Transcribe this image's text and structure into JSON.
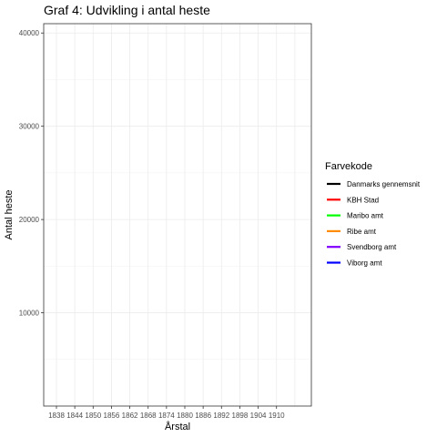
{
  "chart_data": {
    "type": "line",
    "title": "Graf 4: Udvikling i antal heste",
    "xlabel": "Årstal",
    "ylabel": "Antal heste",
    "x_ticks": [
      "1838",
      "1844",
      "1850",
      "1856",
      "1862",
      "1868",
      "1874",
      "1880",
      "1886",
      "1892",
      "1898",
      "1904",
      "1910"
    ],
    "y_ticks": [
      "10000",
      "20000",
      "30000",
      "40000"
    ],
    "ylim": [
      0,
      41000
    ],
    "grid": true,
    "legend": {
      "title": "Farvekode",
      "placement": "right",
      "entries": [
        {
          "label": "Danmarks gennemsnit",
          "color": "#000000"
        },
        {
          "label": "KBH Stad",
          "color": "#ff0000"
        },
        {
          "label": "Maribo amt",
          "color": "#00ff00"
        },
        {
          "label": "Ribe amt",
          "color": "#ff8c00"
        },
        {
          "label": "Svendborg amt",
          "color": "#8000ff"
        },
        {
          "label": "Viborg amt",
          "color": "#0000ff"
        }
      ]
    },
    "series": []
  }
}
